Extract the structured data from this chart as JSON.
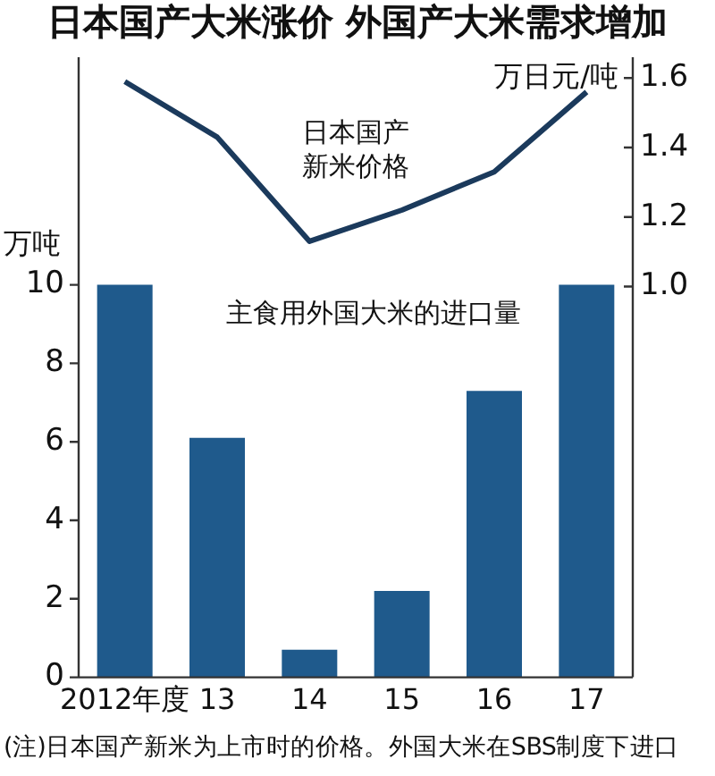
{
  "chart_data": {
    "type": "bar",
    "title": "日本国产大米涨价 外国产大米需求增加",
    "categories": [
      "2012年度",
      "13",
      "14",
      "15",
      "16",
      "17"
    ],
    "ylabel": "万吨",
    "y2label": "万日元/吨",
    "series": [
      {
        "name": "日本国产新米价格",
        "type": "line",
        "axis": "y2",
        "color": "#1b3a5c",
        "values": [
          1.59,
          1.43,
          1.13,
          1.22,
          1.33,
          1.56
        ]
      },
      {
        "name": "主食用外国大米的进口量",
        "color": "#1f5a8c",
        "values": [
          10,
          6.1,
          0.7,
          2.2,
          7.3,
          10
        ]
      }
    ],
    "ylim": [
      0,
      15.8
    ],
    "yticks": [
      0,
      2,
      4,
      6,
      8,
      10
    ],
    "y2lim": [
      -0.125,
      1.66
    ],
    "y2ticks": [
      {
        "value": 1,
        "label": "1.0"
      },
      1.2,
      1.4,
      1.6
    ],
    "grid": false,
    "legend": false,
    "marker": "none",
    "annotations": [
      "(注)日本国产新米为上市时的价格。外国大米在SBS制度下进口"
    ]
  }
}
